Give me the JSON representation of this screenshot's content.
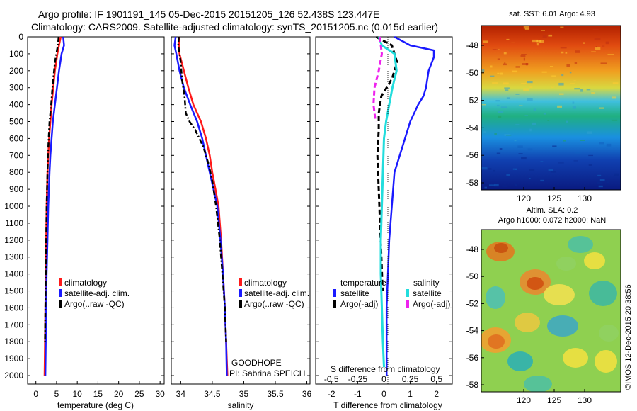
{
  "header": {
    "line1": "Argo profile: IF 1901191_145 05-Dec-2015 20151205_126 52.438S 123.447E",
    "line2": "Climatology: CARS2009. Satellite-adjusted climatology: synTS_20151205.nc (0.015d earlier)"
  },
  "colors": {
    "climatology": "#ff1a1a",
    "satellite": "#1a1aff",
    "argo": "#000000",
    "salinity_satellite": "#22dddd",
    "salinity_argo": "#ee22ee"
  },
  "panels": {
    "depth_ticks": [
      0,
      100,
      200,
      300,
      400,
      500,
      600,
      700,
      800,
      900,
      1000,
      1100,
      1200,
      1300,
      1400,
      1500,
      1600,
      1700,
      1800,
      1900,
      2000
    ],
    "temperature": {
      "xlabel": "temperature (deg C)",
      "xticks": [
        "0",
        "5",
        "10",
        "15",
        "20",
        "25",
        "30"
      ],
      "legend": [
        "climatology",
        "satellite-adj. clim.",
        "Argo(..raw -QC)"
      ]
    },
    "salinity": {
      "xlabel": "salinity",
      "xticks": [
        "34",
        "34.5",
        "35",
        "35.5",
        "36"
      ],
      "legend": [
        "climatology",
        "satellite-adj. clim.",
        "Argo(..raw -QC)"
      ],
      "note1": "GOODHOPE",
      "note2": "PI: Sabrina SPEICH"
    },
    "difference": {
      "xlabel": "T difference from climatology",
      "xticks": [
        "-2",
        "-1",
        "0",
        "1",
        "2"
      ],
      "top_label": "S difference from climatology",
      "top_ticks": [
        "-0.5",
        "-0.25",
        "0",
        "0.25",
        "0.5"
      ],
      "legend_temperature_title": "temperature",
      "legend_salinity_title": "salinity",
      "legend_temperature": [
        "satellite",
        "Argo(-adj)"
      ],
      "legend_salinity": [
        "satellite",
        "Argo(-adj)"
      ]
    }
  },
  "maps": {
    "sst": {
      "title": "sat. SST: 6.01  Argo: 4.93",
      "lat_ticks": [
        "-48",
        "-50",
        "-52",
        "-54",
        "-56",
        "-58"
      ],
      "lon_ticks": [
        "120",
        "125",
        "130"
      ]
    },
    "sla": {
      "title1": "Altim. SLA: 0.2",
      "title2": "Argo h1000: 0.072 h2000: NaN",
      "lat_ticks": [
        "-48",
        "-50",
        "-52",
        "-54",
        "-56",
        "-58"
      ],
      "lon_ticks": [
        "120",
        "125",
        "130"
      ]
    },
    "credit": "©IMOS 12-Dec-2015 20:38:56"
  },
  "chart_data": [
    {
      "type": "line",
      "title": "",
      "xlabel": "temperature (deg C)",
      "ylabel": "",
      "xlim": [
        -2,
        31
      ],
      "ylim": [
        2050,
        0
      ],
      "series": [
        {
          "name": "climatology",
          "x": [
            6,
            5.6,
            5.2,
            4.6,
            4.2,
            3.8,
            3.5,
            3.2,
            3.0,
            2.8,
            2.6,
            2.5,
            2.4,
            2.3,
            2.2,
            2.1
          ],
          "y": [
            0,
            50,
            100,
            200,
            300,
            400,
            500,
            600,
            700,
            800,
            1000,
            1200,
            1400,
            1600,
            1800,
            2000
          ]
        },
        {
          "name": "satellite-adj. clim.",
          "x": [
            6.6,
            6.8,
            6.2,
            5.6,
            5.1,
            4.6,
            4.1,
            3.8,
            3.5,
            3.3,
            3.0,
            2.8,
            2.6,
            2.5,
            2.4,
            2.3
          ],
          "y": [
            0,
            50,
            100,
            200,
            300,
            400,
            500,
            600,
            700,
            800,
            1000,
            1200,
            1400,
            1600,
            1800,
            2000
          ]
        },
        {
          "name": "Argo(..raw -QC)",
          "x": [
            5.5,
            5.3,
            4.6,
            4.0,
            3.7,
            3.3,
            3.1,
            2.9,
            2.8,
            2.7,
            2.6,
            2.5,
            2.4,
            2.3,
            2.2
          ],
          "y": [
            0,
            50,
            150,
            300,
            400,
            500,
            600,
            700,
            800,
            900,
            1000,
            1200,
            1400,
            1600,
            1800
          ]
        }
      ]
    },
    {
      "type": "line",
      "title": "",
      "xlabel": "salinity",
      "ylabel": "",
      "xlim": [
        33.85,
        36.05
      ],
      "ylim": [
        2050,
        0
      ],
      "series": [
        {
          "name": "climatology",
          "x": [
            33.98,
            33.97,
            33.98,
            34.05,
            34.12,
            34.2,
            34.32,
            34.4,
            34.46,
            34.5,
            34.55,
            34.6,
            34.64,
            34.67,
            34.7,
            34.72,
            34.73,
            34.74
          ],
          "y": [
            0,
            50,
            100,
            200,
            300,
            400,
            500,
            600,
            700,
            800,
            900,
            1000,
            1200,
            1400,
            1600,
            1800,
            1900,
            2000
          ]
        },
        {
          "name": "satellite-adj. clim.",
          "x": [
            33.92,
            33.9,
            33.93,
            33.98,
            34.05,
            34.15,
            34.26,
            34.34,
            34.4,
            34.46,
            34.52,
            34.58,
            34.63,
            34.67,
            34.7,
            34.72,
            34.73
          ],
          "y": [
            0,
            50,
            100,
            200,
            300,
            400,
            500,
            600,
            700,
            800,
            900,
            1000,
            1200,
            1400,
            1600,
            1800,
            2000
          ]
        },
        {
          "name": "Argo(..raw -QC)",
          "x": [
            33.97,
            33.96,
            34.0,
            34.02,
            34.06,
            34.08,
            34.14,
            34.23,
            34.36,
            34.44,
            34.5,
            34.56,
            34.62,
            34.66,
            34.7,
            34.72
          ],
          "y": [
            0,
            50,
            150,
            250,
            350,
            450,
            500,
            550,
            650,
            750,
            850,
            1000,
            1200,
            1400,
            1600,
            1800
          ]
        }
      ]
    },
    {
      "type": "line",
      "title": "",
      "xlabel": "T difference from climatology",
      "ylabel": "",
      "xlim": [
        -2.6,
        2.6
      ],
      "ylim": [
        2050,
        0
      ],
      "series": [
        {
          "name": "satellite",
          "x": [
            0.4,
            1.0,
            1.9,
            1.9,
            1.7,
            1.6,
            1.5,
            1.3,
            1.0,
            0.8,
            0.6,
            0.4,
            0.3,
            0.2,
            0.15,
            0.1,
            0.1
          ],
          "y": [
            0,
            50,
            80,
            120,
            200,
            300,
            350,
            400,
            500,
            600,
            700,
            800,
            1000,
            1200,
            1400,
            1600,
            2000
          ]
        },
        {
          "name": "Argo(-adj)",
          "x": [
            -0.3,
            0.3,
            0.5,
            0.3,
            -0.1,
            -0.2,
            -0.2,
            -0.25,
            -0.2,
            -0.15,
            -0.1,
            -0.05
          ],
          "y": [
            0,
            50,
            150,
            250,
            350,
            450,
            550,
            700,
            900,
            1100,
            1300,
            1500
          ]
        }
      ]
    },
    {
      "type": "line",
      "title": "",
      "xlabel": "S difference from climatology",
      "ylabel": "",
      "xlim": [
        -0.65,
        0.65
      ],
      "ylim": [
        2050,
        0
      ],
      "series": [
        {
          "name": "satellite",
          "x": [
            -0.05,
            -0.02,
            0.1,
            0.12,
            0.08,
            0.05,
            0.02,
            0.0,
            -0.01,
            -0.02,
            -0.03,
            -0.03,
            -0.02,
            -0.01,
            0.0
          ],
          "y": [
            0,
            50,
            100,
            200,
            300,
            400,
            500,
            600,
            800,
            1000,
            1200,
            1400,
            1600,
            1800,
            1950
          ]
        },
        {
          "name": "Argo(-adj)",
          "x": [
            -0.04,
            -0.02,
            -0.05,
            -0.09,
            -0.1,
            -0.08
          ],
          "y": [
            0,
            100,
            200,
            300,
            400,
            500
          ]
        }
      ]
    }
  ]
}
